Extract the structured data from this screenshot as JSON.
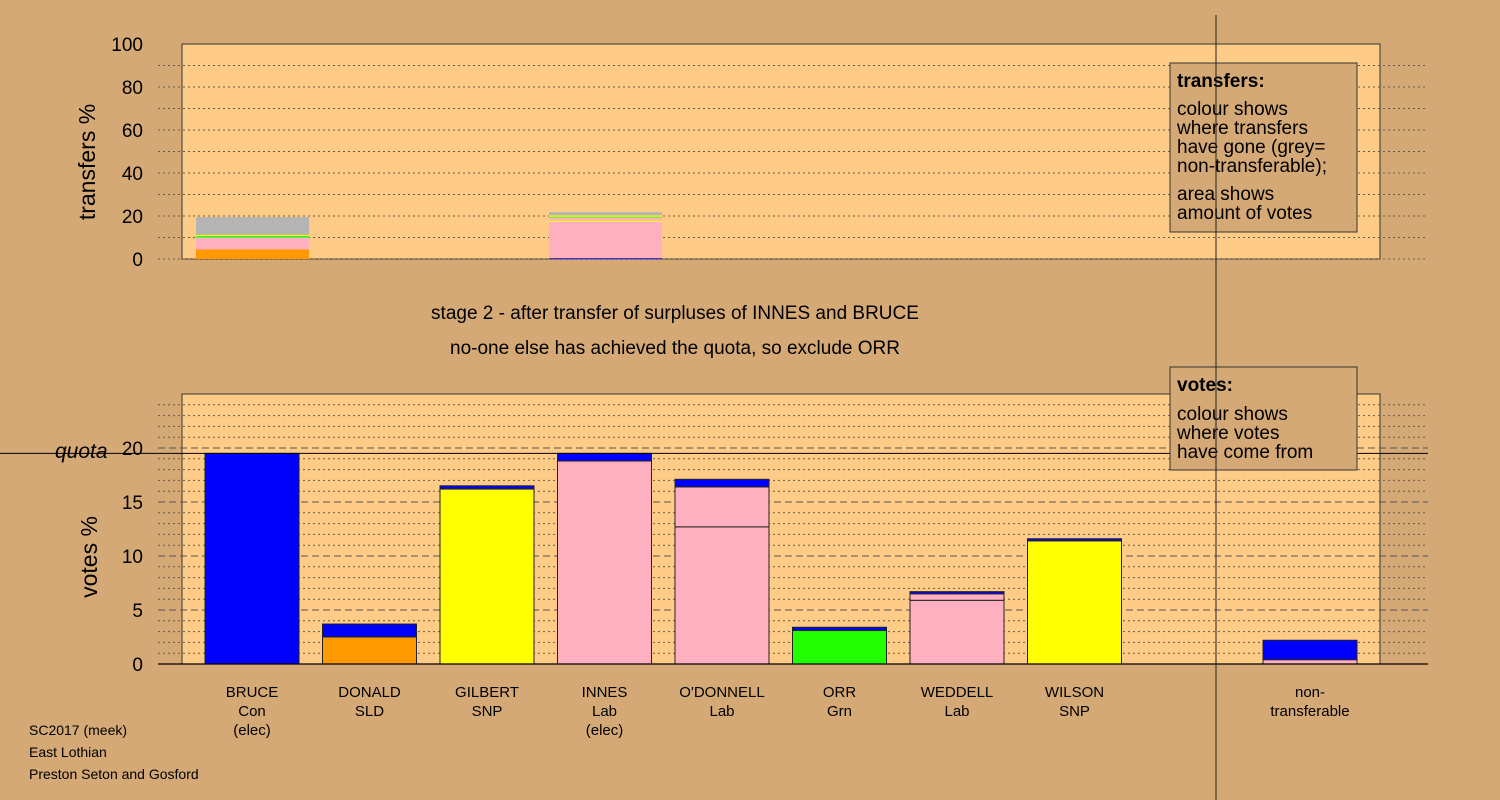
{
  "colors": {
    "background": "#d4a976",
    "plot_bg": "#ffcc88",
    "Con": "#0000ff",
    "SLD": "#ff9900",
    "SNP": "#ffff00",
    "Lab": "#ffb0c0",
    "Grn": "#22ff00",
    "nontransferable": "#b4b4b4"
  },
  "stage_text": {
    "line1": "stage 2 - after transfer of surpluses of INNES and BRUCE",
    "line2": "no-one else has achieved the quota, so exclude ORR"
  },
  "footer": {
    "line1": "SC2017 (meek)",
    "line2": "East Lothian",
    "line3": "Preston Seton and Gosford"
  },
  "legend_transfers": {
    "title": "transfers:",
    "text1": [
      "colour shows",
      "where transfers",
      "have gone (grey=",
      "non-transferable);"
    ],
    "text2": [
      "area shows",
      "amount of votes"
    ]
  },
  "legend_votes": {
    "title": "votes:",
    "text1": [
      "colour shows",
      "where votes",
      "have come from"
    ]
  },
  "chart_data": [
    {
      "type": "bar",
      "ylabel": "transfers %",
      "ylim": [
        0,
        100
      ],
      "yticks": [
        0,
        20,
        40,
        60,
        80,
        100
      ],
      "bars": [
        {
          "source": "BRUCE",
          "segments": [
            {
              "party": "SLD",
              "value": 4.5
            },
            {
              "party": "Lab",
              "value": 5.5
            },
            {
              "party": "Grn",
              "value": 0.7
            },
            {
              "party": "SNP",
              "value": 0.5
            },
            {
              "party": "nontransferable",
              "value": 8.3
            }
          ]
        },
        {
          "source": "INNES",
          "segments": [
            {
              "party": "Con",
              "value": 0.4
            },
            {
              "party": "Lab",
              "value": 16.8
            },
            {
              "party": "SNP",
              "value": 0.6
            },
            {
              "party": "Lab",
              "value": 1.5
            },
            {
              "party": "Grn",
              "value": 0.4
            },
            {
              "party": "SNP",
              "value": 0.6
            },
            {
              "party": "nontransferable",
              "value": 1.5
            }
          ]
        }
      ]
    },
    {
      "type": "bar",
      "ylabel": "votes %",
      "ylim": [
        0,
        25
      ],
      "yticks": [
        0,
        5,
        10,
        15,
        20
      ],
      "quota_label": "quota",
      "quota": 19.5,
      "candidates": [
        {
          "name": "BRUCE",
          "party": "Con",
          "note": "(elec)",
          "segments": [
            {
              "party": "Con",
              "value": 19.5
            }
          ]
        },
        {
          "name": "DONALD",
          "party": "SLD",
          "note": "",
          "segments": [
            {
              "party": "SLD",
              "value": 2.5
            },
            {
              "party": "Con",
              "value": 1.2
            }
          ]
        },
        {
          "name": "GILBERT",
          "party": "SNP",
          "note": "",
          "segments": [
            {
              "party": "SNP",
              "value": 16.2
            },
            {
              "party": "Con",
              "value": 0.3
            }
          ]
        },
        {
          "name": "INNES",
          "party": "Lab",
          "note": "(elec)",
          "segments": [
            {
              "party": "Lab",
              "value": 18.8
            },
            {
              "party": "Con",
              "value": 0.7
            }
          ]
        },
        {
          "name": "O'DONNELL",
          "party": "Lab",
          "note": "",
          "segments": [
            {
              "party": "Lab",
              "value": 12.7
            },
            {
              "party": "Lab",
              "value": 3.7
            },
            {
              "party": "Con",
              "value": 0.7
            }
          ]
        },
        {
          "name": "ORR",
          "party": "Grn",
          "note": "",
          "segments": [
            {
              "party": "Grn",
              "value": 3.1
            },
            {
              "party": "Con",
              "value": 0.3
            }
          ]
        },
        {
          "name": "WEDDELL",
          "party": "Lab",
          "note": "",
          "segments": [
            {
              "party": "Lab",
              "value": 5.9
            },
            {
              "party": "Lab",
              "value": 0.6
            },
            {
              "party": "Con",
              "value": 0.2
            }
          ]
        },
        {
          "name": "WILSON",
          "party": "SNP",
          "note": "",
          "segments": [
            {
              "party": "SNP",
              "value": 11.4
            },
            {
              "party": "Con",
              "value": 0.2
            }
          ]
        }
      ],
      "nontransferable": {
        "label_line1": "non-",
        "label_line2": "transferable",
        "segments": [
          {
            "party": "Lab",
            "value": 0.4
          },
          {
            "party": "Con",
            "value": 1.8
          }
        ]
      }
    }
  ]
}
